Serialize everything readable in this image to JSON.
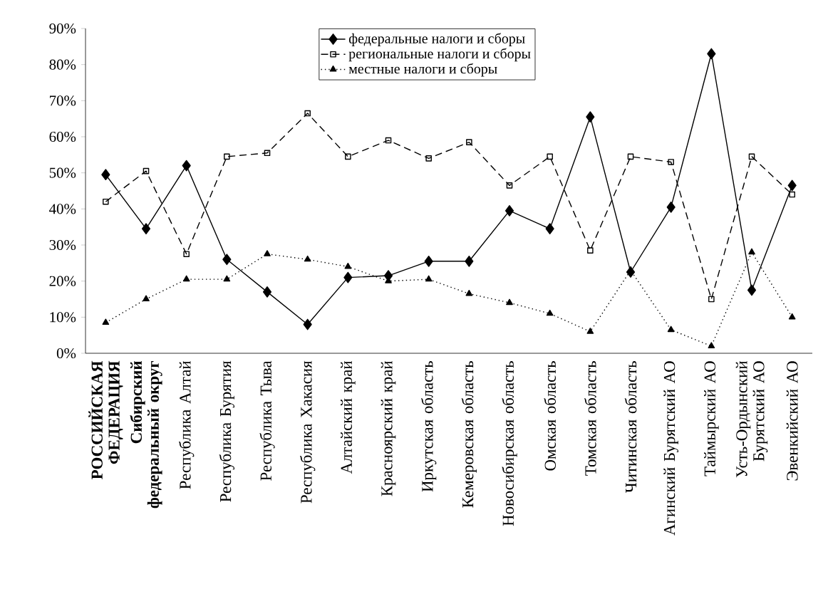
{
  "chart_data": {
    "type": "line",
    "categories": [
      "**РОССИЙСКАЯ ФЕДЕРАЦИЯ**",
      "**Сибирский федеральный округ**",
      "Республика Алтай",
      "Республика Бурятия",
      "Республика Тыва",
      "Республика Хакасия",
      "Алтайский край",
      "Красноярский край",
      "Иркутская область",
      "Кемеровская область",
      "Новосибирская область",
      "Омская область",
      "Томская область",
      "Читинская область",
      "Агинский Бурятский АО",
      "Таймырский АО",
      "Усть-Ордынский Бурятский АО",
      "Эвенкийский АО"
    ],
    "series": [
      {
        "name": "федеральные налоги и сборы",
        "color": "#000000",
        "marker": "diamond",
        "line_style": "solid",
        "values": [
          49.5,
          34.5,
          52,
          26,
          17,
          8,
          21,
          21.5,
          25.5,
          25.5,
          39.5,
          34.5,
          65.5,
          22.5,
          40.5,
          83,
          17.5,
          46.5
        ]
      },
      {
        "name": "региональные налоги и сборы",
        "color": "#000000",
        "marker": "square",
        "line_style": "dashed",
        "values": [
          42,
          50.5,
          27.5,
          54.5,
          55.5,
          66.5,
          54.5,
          59,
          54,
          58.5,
          46.5,
          54.5,
          28.5,
          54.5,
          53,
          15,
          54.5,
          44
        ]
      },
      {
        "name": "местные налоги и сборы",
        "color": "#000000",
        "marker": "triangle",
        "line_style": "dotted",
        "values": [
          8.5,
          15,
          20.5,
          20.5,
          27.5,
          26,
          24,
          20,
          20.5,
          16.5,
          14,
          11,
          6,
          23,
          6.5,
          2,
          28,
          10
        ]
      }
    ],
    "ylim": [
      0,
      90
    ],
    "yticks": [
      {
        "value": 0,
        "label": "0%"
      },
      {
        "value": 10,
        "label": "10%"
      },
      {
        "value": 20,
        "label": "20%"
      },
      {
        "value": 30,
        "label": "30%"
      },
      {
        "value": 40,
        "label": "40%"
      },
      {
        "value": 50,
        "label": "50%"
      },
      {
        "value": 60,
        "label": "60%"
      },
      {
        "value": 70,
        "label": "70%"
      },
      {
        "value": 80,
        "label": "80%"
      },
      {
        "value": 90,
        "label": "90%"
      }
    ],
    "legend": "top",
    "grid": false
  }
}
